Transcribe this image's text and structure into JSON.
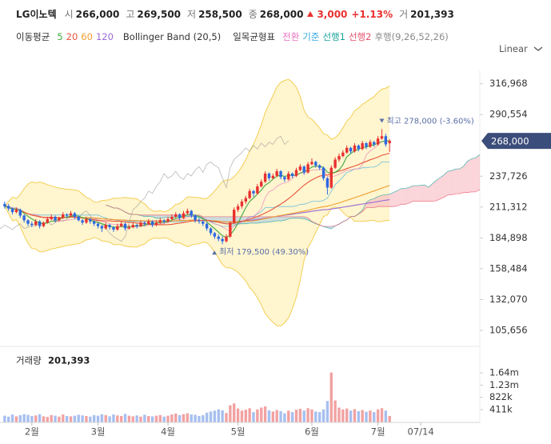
{
  "header": {
    "name": "LG이노텍",
    "items": [
      {
        "label": "시",
        "value": "266,000"
      },
      {
        "label": "고",
        "value": "269,500"
      },
      {
        "label": "저",
        "value": "258,500"
      },
      {
        "label": "종",
        "value": "268,000"
      }
    ],
    "change": "3,000",
    "change_pct": "+1.13%",
    "volume_label": "거",
    "volume": "201,393"
  },
  "legend": {
    "ma_label": "이동평균",
    "bollinger": "Bollinger Band (20,5)",
    "ichimoku": "일목균형표",
    "ichimoku_lines": [
      {
        "text": "전환",
        "color": "#e86fbf"
      },
      {
        "text": "기준",
        "color": "#35a8e0"
      },
      {
        "text": "선행1",
        "color": "#1aa39a"
      },
      {
        "text": "선행2",
        "color": "#e4506a"
      },
      {
        "text": "후행(9,26,52,26)",
        "color": "#8a8a8a"
      }
    ],
    "scale": "Linear"
  },
  "chart_data": {
    "type": "candlestick",
    "ma": [
      {
        "period": 5,
        "color": "#43a843"
      },
      {
        "period": 20,
        "color": "#e8543a"
      },
      {
        "period": 60,
        "color": "#f0a030"
      },
      {
        "period": 120,
        "color": "#9a6ad6"
      }
    ],
    "bollinger_color": "#f3cf55",
    "bollinger_fill": "#fff5cf",
    "cloud_colors": [
      "#f8b9c0",
      "#aecbe6"
    ],
    "colors": {
      "up": "#e8312f",
      "down": "#2d68e0",
      "volume_up": "#f2a2a2",
      "volume_down": "#a7bff0",
      "badge": "#3b4d7a",
      "annotation": "#5b6fa6"
    },
    "open": [
      214000,
      212000,
      210000,
      207000,
      209000,
      204000,
      200000,
      197000,
      196000,
      199000,
      195000,
      198000,
      201000,
      203000,
      200000,
      202000,
      205000,
      204000,
      206000,
      203000,
      200000,
      198000,
      201000,
      199000,
      197000,
      195000,
      193000,
      196000,
      194000,
      192000,
      195000,
      197000,
      193000,
      194000,
      196000,
      195000,
      198000,
      197000,
      199000,
      196000,
      198000,
      200000,
      199000,
      201000,
      203000,
      205000,
      202000,
      206000,
      208000,
      204000,
      200000,
      199000,
      197000,
      193000,
      189000,
      186000,
      184000,
      182000,
      186000,
      198000,
      209000,
      212000,
      216000,
      219000,
      225000,
      223000,
      229000,
      233000,
      240000,
      236000,
      238000,
      242000,
      237000,
      235000,
      240000,
      238000,
      243000,
      246000,
      241000,
      248000,
      250000,
      247000,
      245000,
      236000,
      228000,
      245000,
      252000,
      255000,
      258000,
      262000,
      259000,
      264000,
      261000,
      266000,
      263000,
      267000,
      265000,
      270000,
      272000,
      266000
    ],
    "high": [
      216000,
      214000,
      211000,
      211000,
      210000,
      205000,
      201000,
      199000,
      201000,
      200000,
      199000,
      203000,
      205000,
      204000,
      203000,
      207000,
      206000,
      208000,
      207000,
      204000,
      201000,
      203000,
      202000,
      200000,
      198000,
      196000,
      198000,
      197000,
      195000,
      197000,
      199000,
      198000,
      196000,
      198000,
      197000,
      200000,
      199000,
      201000,
      200000,
      200000,
      202000,
      201000,
      203000,
      205000,
      207000,
      206000,
      208000,
      210000,
      209000,
      205000,
      202000,
      200000,
      198000,
      194000,
      190000,
      188000,
      186000,
      188000,
      199000,
      211000,
      214000,
      218000,
      221000,
      227000,
      226000,
      231000,
      235000,
      242000,
      241000,
      240000,
      244000,
      243000,
      238000,
      242000,
      241000,
      245000,
      248000,
      247000,
      250000,
      253000,
      251000,
      248000,
      246000,
      237000,
      247000,
      254000,
      257000,
      260000,
      264000,
      263000,
      266000,
      265000,
      268000,
      267000,
      269000,
      268000,
      272000,
      278000,
      274000,
      269500
    ],
    "low": [
      210000,
      208000,
      205000,
      206000,
      202000,
      198000,
      195000,
      194000,
      195000,
      193000,
      194000,
      197000,
      200000,
      198000,
      199000,
      201000,
      202000,
      203000,
      201000,
      199000,
      196000,
      197000,
      197000,
      195000,
      193000,
      190000,
      192000,
      192000,
      190000,
      191000,
      194000,
      191000,
      192000,
      193000,
      193000,
      194000,
      195000,
      196000,
      194000,
      195000,
      197000,
      197000,
      198000,
      200000,
      202000,
      200000,
      201000,
      205000,
      202000,
      198000,
      197000,
      195000,
      191000,
      187000,
      184000,
      182000,
      179500,
      181000,
      185000,
      197000,
      207000,
      210000,
      214000,
      218000,
      220000,
      222000,
      228000,
      232000,
      234000,
      235000,
      237000,
      235000,
      233000,
      234000,
      236000,
      237000,
      242000,
      239000,
      240000,
      247000,
      245000,
      243000,
      234000,
      222000,
      227000,
      244000,
      250000,
      254000,
      257000,
      257000,
      258000,
      259000,
      260000,
      261000,
      262000,
      263000,
      264000,
      269000,
      263000,
      258500
    ],
    "close": [
      212000,
      210000,
      207000,
      209000,
      204000,
      200000,
      197000,
      196000,
      199000,
      195000,
      198000,
      201000,
      203000,
      200000,
      202000,
      205000,
      204000,
      206000,
      203000,
      200000,
      198000,
      201000,
      199000,
      197000,
      195000,
      193000,
      196000,
      194000,
      192000,
      195000,
      197000,
      193000,
      194000,
      196000,
      195000,
      198000,
      197000,
      199000,
      196000,
      198000,
      200000,
      199000,
      201000,
      203000,
      205000,
      202000,
      206000,
      208000,
      204000,
      200000,
      199000,
      197000,
      193000,
      189000,
      186000,
      184000,
      182000,
      186000,
      198000,
      209000,
      212000,
      216000,
      219000,
      225000,
      223000,
      229000,
      233000,
      240000,
      236000,
      238000,
      242000,
      237000,
      235000,
      240000,
      238000,
      243000,
      246000,
      241000,
      248000,
      250000,
      247000,
      245000,
      236000,
      228000,
      245000,
      252000,
      255000,
      258000,
      262000,
      259000,
      264000,
      261000,
      266000,
      263000,
      267000,
      265000,
      270000,
      272000,
      265000,
      268000
    ],
    "volume": [
      210000,
      180000,
      250000,
      190000,
      230000,
      260000,
      240000,
      200000,
      220000,
      260000,
      190000,
      170000,
      230000,
      210000,
      180000,
      250000,
      200000,
      190000,
      210000,
      240000,
      220000,
      200000,
      180000,
      230000,
      210000,
      260000,
      230000,
      190000,
      250000,
      220000,
      200000,
      270000,
      210000,
      190000,
      220000,
      180000,
      240000,
      200000,
      190000,
      210000,
      230000,
      180000,
      210000,
      250000,
      280000,
      230000,
      260000,
      290000,
      250000,
      240000,
      200000,
      230000,
      310000,
      350000,
      380000,
      420000,
      390000,
      300000,
      560000,
      620000,
      450000,
      380000,
      410000,
      460000,
      330000,
      420000,
      480000,
      520000,
      390000,
      350000,
      400000,
      360000,
      290000,
      380000,
      330000,
      410000,
      440000,
      380000,
      460000,
      420000,
      350000,
      330000,
      420000,
      700000,
      1650000,
      720000,
      480000,
      420000,
      450000,
      380000,
      430000,
      360000,
      400000,
      340000,
      380000,
      330000,
      420000,
      460000,
      380000,
      201393
    ],
    "xlim": [
      -1.2,
      122.2
    ],
    "xticks": [
      {
        "value": 7,
        "label": "2월"
      },
      {
        "value": 24,
        "label": "3월"
      },
      {
        "value": 42,
        "label": "4월"
      },
      {
        "value": 60,
        "label": "5월"
      },
      {
        "value": 79,
        "label": "6월"
      },
      {
        "value": 96,
        "label": "7월"
      },
      {
        "value": 107,
        "label": "07/14"
      }
    ],
    "ylim": [
      94000,
      327000
    ],
    "yticks": [
      {
        "value": 105656,
        "label": "105,656"
      },
      {
        "value": 132070,
        "label": "132,070"
      },
      {
        "value": 158484,
        "label": "158,484"
      },
      {
        "value": 184898,
        "label": "184,898"
      },
      {
        "value": 211312,
        "label": "211,312"
      },
      {
        "value": 237726,
        "label": "237,726"
      },
      {
        "value": 290554,
        "label": "290,554"
      },
      {
        "value": 316968,
        "label": "316,968"
      }
    ],
    "annotations": {
      "high": "최고 278,000 (-3.60%)",
      "low": "최저 179,500 (49.30%)"
    },
    "volume_panel": {
      "title": "거래량",
      "ylim": [
        0,
        2415000
      ],
      "yticks": [
        {
          "value": 411000,
          "label": "411k"
        },
        {
          "value": 822000,
          "label": "822k"
        },
        {
          "value": 1230000,
          "label": "1.23m"
        },
        {
          "value": 1640000,
          "label": "1.64m"
        }
      ]
    }
  }
}
